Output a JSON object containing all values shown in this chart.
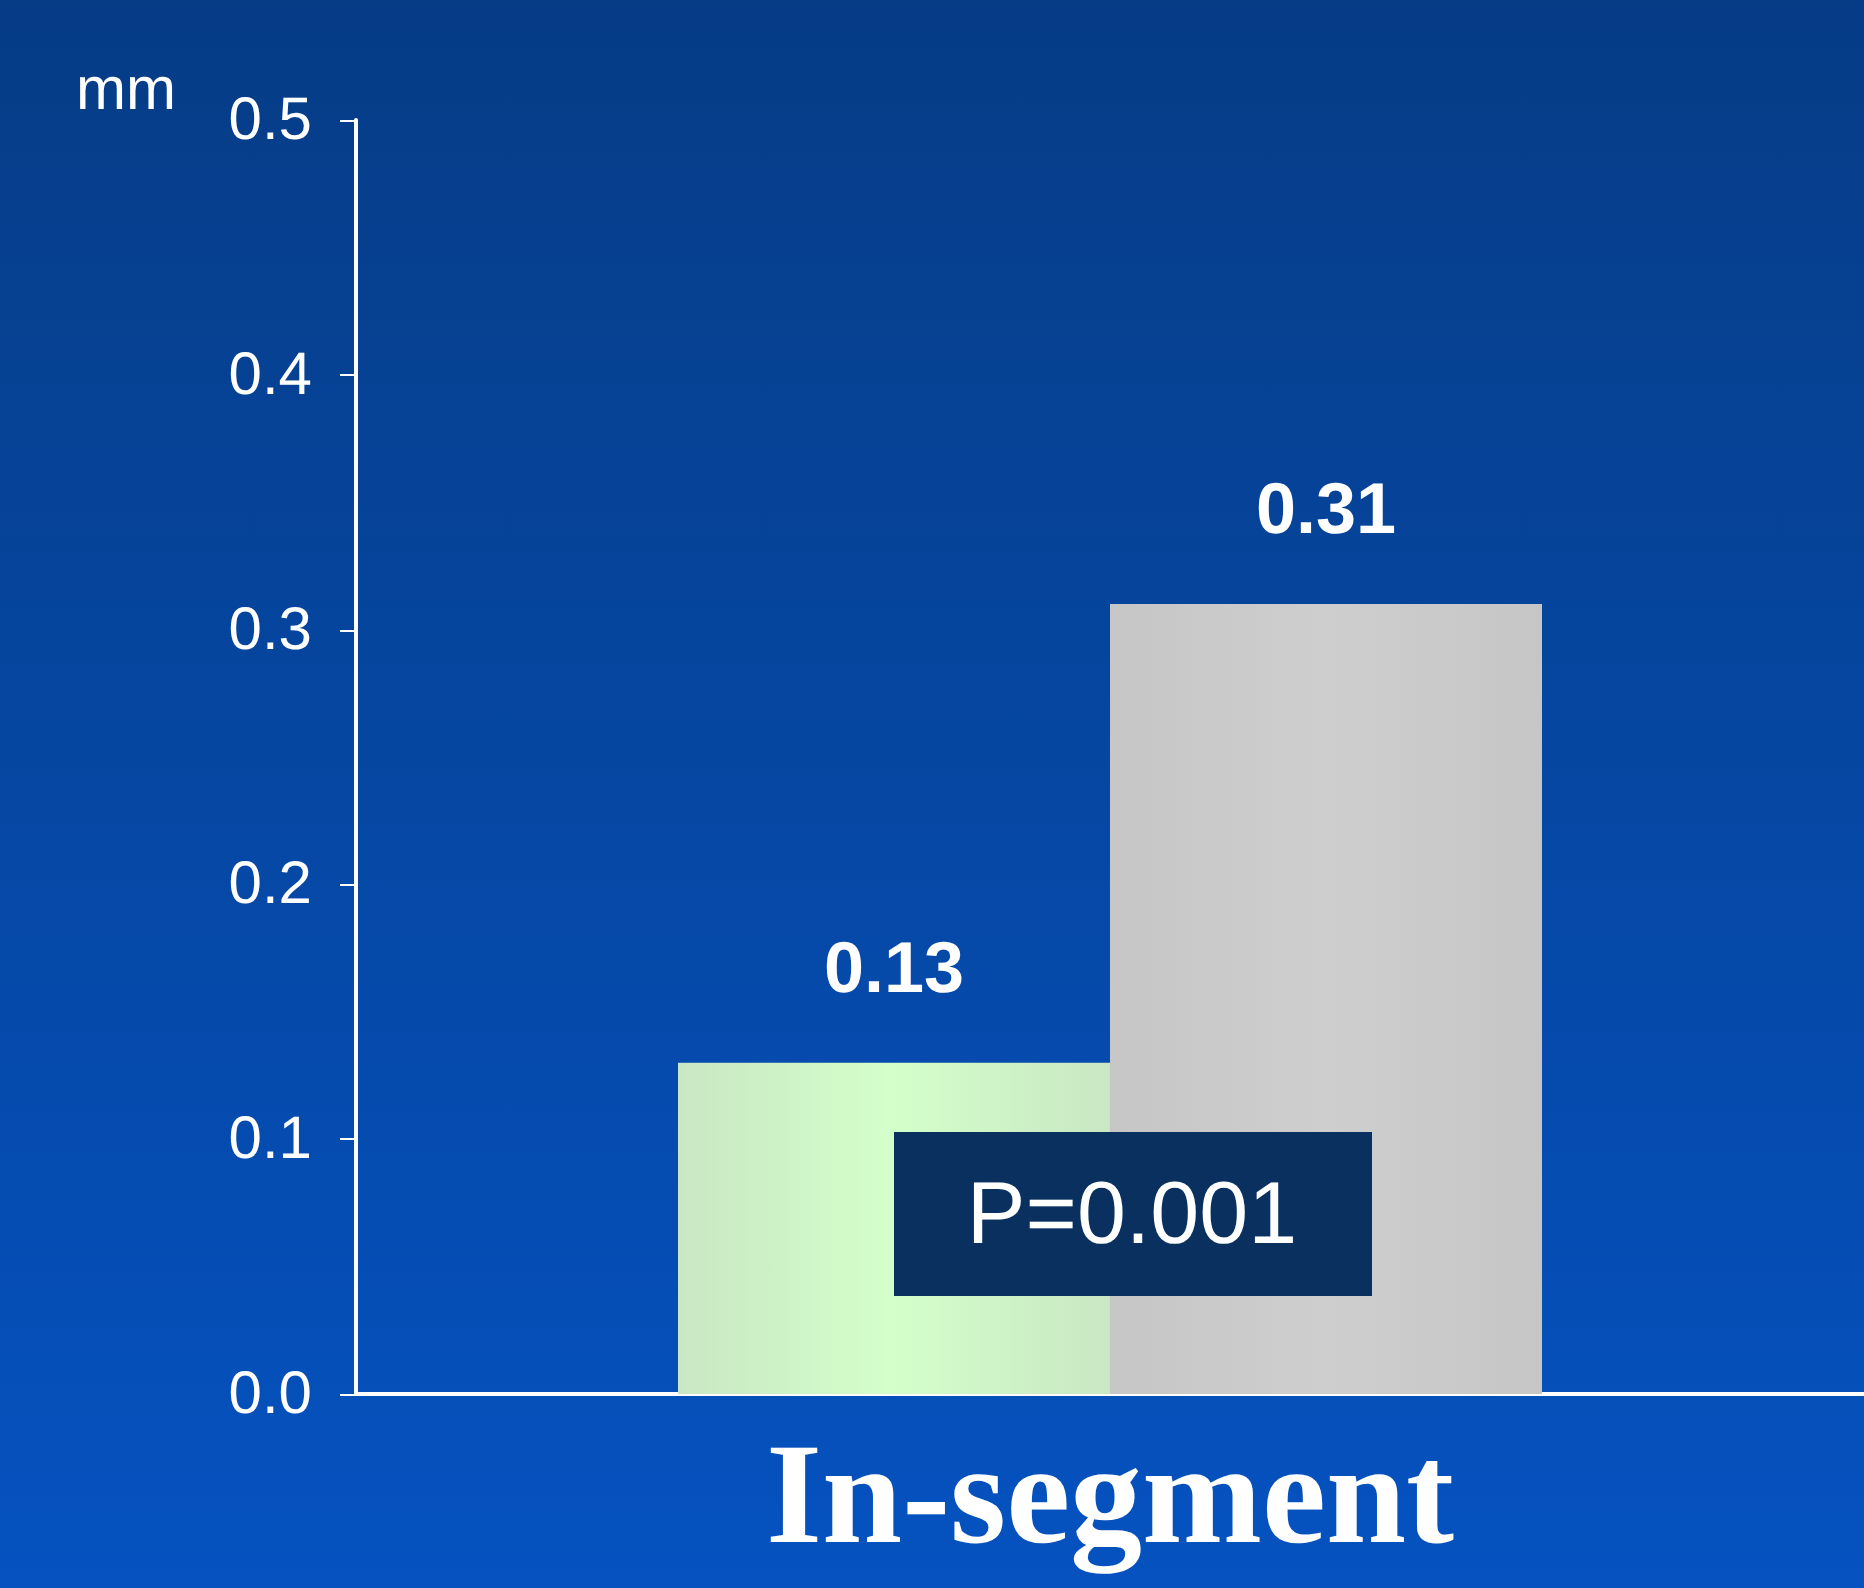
{
  "chart_data": {
    "type": "bar",
    "ylabel": "mm",
    "categories": [
      "In-segment"
    ],
    "series": [
      {
        "color": "#b8e0b0",
        "values": [
          0.13
        ]
      },
      {
        "color": "#b4b4b4",
        "values": [
          0.31
        ]
      }
    ],
    "ylim": [
      0,
      0.5
    ],
    "yticks": [
      {
        "value": 0,
        "label": "0.0"
      },
      0.1,
      0.2,
      0.3,
      0.4,
      0.5
    ],
    "data_labels": true,
    "grid": false,
    "annotations": [
      "P=0.001"
    ]
  }
}
